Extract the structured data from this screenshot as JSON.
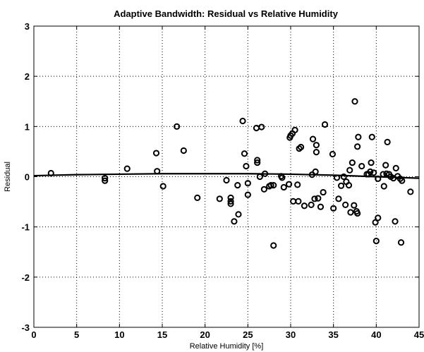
{
  "chart_data": {
    "type": "scatter",
    "title": "Adaptive Bandwidth: Residual vs Relative Humidity",
    "xlabel": "Relative Humidity [%]",
    "ylabel": "Residual",
    "xlim": [
      0,
      45
    ],
    "ylim": [
      -3,
      3
    ],
    "xticks": [
      0,
      5,
      10,
      15,
      20,
      25,
      30,
      35,
      40,
      45
    ],
    "yticks": [
      -3,
      -2,
      -1,
      0,
      1,
      2,
      3
    ],
    "grid": true,
    "marker": "open-circle",
    "points": [
      [
        2.0,
        0.07
      ],
      [
        8.3,
        -0.03
      ],
      [
        8.3,
        -0.08
      ],
      [
        10.9,
        0.16
      ],
      [
        14.3,
        0.47
      ],
      [
        14.4,
        0.11
      ],
      [
        15.1,
        -0.19
      ],
      [
        16.7,
        1.0
      ],
      [
        17.5,
        0.52
      ],
      [
        19.1,
        -0.42
      ],
      [
        21.7,
        -0.44
      ],
      [
        22.5,
        -0.07
      ],
      [
        23.0,
        -0.42
      ],
      [
        23.0,
        -0.49
      ],
      [
        23.0,
        -0.54
      ],
      [
        23.4,
        -0.89
      ],
      [
        23.8,
        -0.17
      ],
      [
        23.9,
        -0.75
      ],
      [
        24.4,
        1.11
      ],
      [
        24.6,
        0.46
      ],
      [
        24.8,
        0.21
      ],
      [
        25.0,
        -0.13
      ],
      [
        25.0,
        -0.36
      ],
      [
        26.0,
        0.97
      ],
      [
        26.1,
        0.33
      ],
      [
        26.1,
        0.28
      ],
      [
        26.4,
        0.0
      ],
      [
        26.6,
        0.99
      ],
      [
        26.9,
        -0.25
      ],
      [
        27.0,
        0.06
      ],
      [
        27.5,
        -0.19
      ],
      [
        27.7,
        -0.17
      ],
      [
        28.0,
        -1.37
      ],
      [
        28.0,
        -0.17
      ],
      [
        28.9,
        0.01
      ],
      [
        29.0,
        -0.02
      ],
      [
        29.2,
        -0.21
      ],
      [
        29.8,
        -0.15
      ],
      [
        29.9,
        0.78
      ],
      [
        30.0,
        0.82
      ],
      [
        30.2,
        0.86
      ],
      [
        30.5,
        0.93
      ],
      [
        30.3,
        -0.49
      ],
      [
        30.9,
        -0.49
      ],
      [
        30.8,
        -0.16
      ],
      [
        31.0,
        0.56
      ],
      [
        31.2,
        0.59
      ],
      [
        31.6,
        -0.58
      ],
      [
        32.4,
        -0.56
      ],
      [
        32.5,
        0.04
      ],
      [
        32.6,
        0.75
      ],
      [
        32.8,
        -0.44
      ],
      [
        32.9,
        0.1
      ],
      [
        33.0,
        0.49
      ],
      [
        33.0,
        0.63
      ],
      [
        33.2,
        -0.43
      ],
      [
        33.5,
        -0.6
      ],
      [
        33.8,
        -0.31
      ],
      [
        34.0,
        1.04
      ],
      [
        34.9,
        0.45
      ],
      [
        35.0,
        -0.63
      ],
      [
        35.4,
        -0.02
      ],
      [
        35.6,
        -0.44
      ],
      [
        35.9,
        -0.18
      ],
      [
        36.2,
        0.0
      ],
      [
        36.4,
        -0.56
      ],
      [
        36.5,
        -0.1
      ],
      [
        36.8,
        -0.17
      ],
      [
        36.9,
        0.13
      ],
      [
        37.0,
        -0.71
      ],
      [
        37.2,
        0.28
      ],
      [
        37.4,
        -0.57
      ],
      [
        37.5,
        1.5
      ],
      [
        37.7,
        -0.69
      ],
      [
        37.8,
        -0.73
      ],
      [
        37.8,
        0.6
      ],
      [
        37.9,
        0.79
      ],
      [
        38.3,
        0.21
      ],
      [
        38.9,
        0.05
      ],
      [
        39.1,
        0.05
      ],
      [
        39.3,
        0.1
      ],
      [
        39.4,
        0.28
      ],
      [
        39.5,
        0.79
      ],
      [
        39.7,
        0.08
      ],
      [
        39.9,
        -0.91
      ],
      [
        40.0,
        -1.28
      ],
      [
        40.2,
        -0.82
      ],
      [
        40.2,
        -0.04
      ],
      [
        40.8,
        0.05
      ],
      [
        40.9,
        -0.19
      ],
      [
        41.1,
        0.23
      ],
      [
        41.2,
        0.06
      ],
      [
        41.3,
        0.69
      ],
      [
        41.5,
        0.05
      ],
      [
        41.7,
        0.0
      ],
      [
        42.0,
        -0.03
      ],
      [
        42.2,
        -0.89
      ],
      [
        42.3,
        0.17
      ],
      [
        42.5,
        0.01
      ],
      [
        42.8,
        -0.04
      ],
      [
        42.9,
        -1.31
      ],
      [
        43.0,
        -0.08
      ],
      [
        44.0,
        -0.3
      ]
    ],
    "fit_line": {
      "x": [
        0,
        5,
        10,
        15,
        20,
        25,
        30,
        35,
        40,
        45
      ],
      "y": [
        0.02,
        0.04,
        0.05,
        0.06,
        0.06,
        0.06,
        0.05,
        0.03,
        0.0,
        -0.03
      ]
    }
  }
}
